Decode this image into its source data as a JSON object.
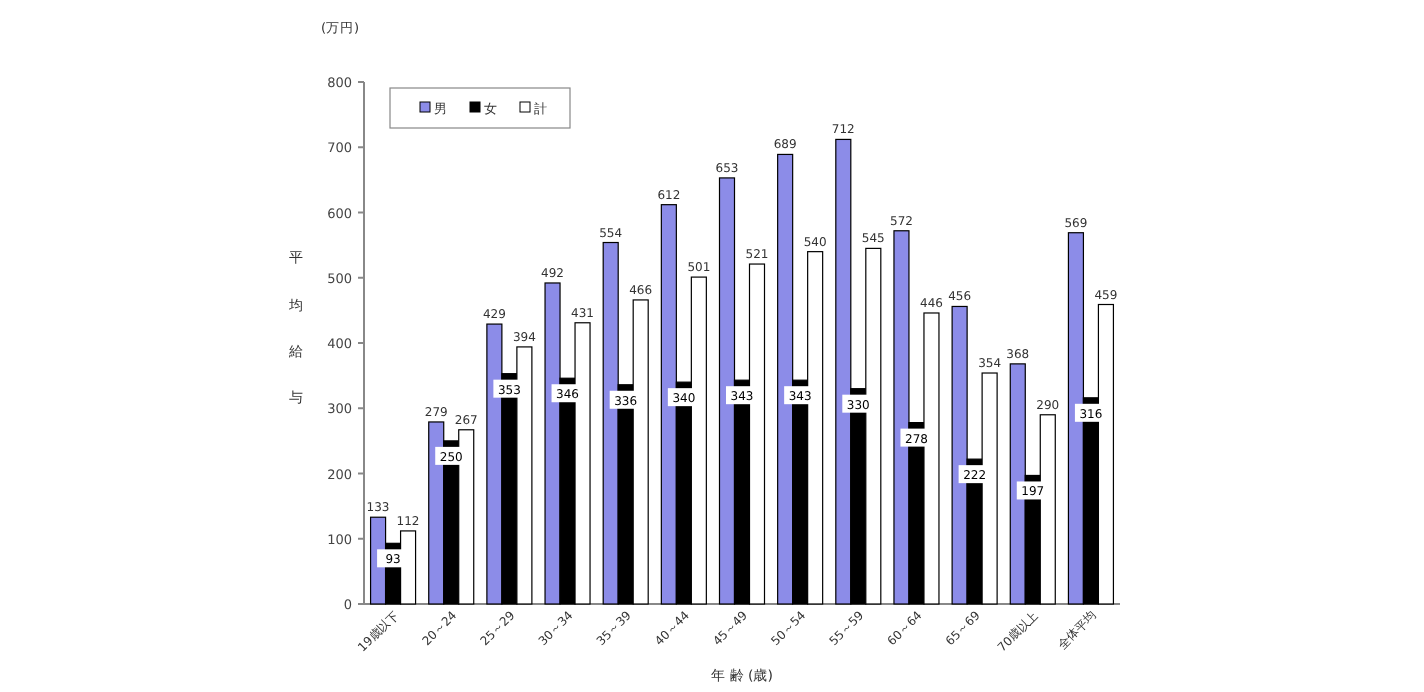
{
  "chart_data": {
    "type": "bar",
    "title": "(万円)",
    "xlabel": "年 齢 (歳)",
    "ylabel": "平均給与",
    "categories": [
      "19歳以下",
      "20～24",
      "25～29",
      "30～34",
      "35～39",
      "40～44",
      "45～49",
      "50～54",
      "55～59",
      "60～64",
      "65～69",
      "70歳以上",
      "全体平均"
    ],
    "series": [
      {
        "name": "男",
        "color": "#8c8ce8",
        "values": [
          133,
          279,
          429,
          492,
          554,
          612,
          653,
          689,
          712,
          572,
          456,
          368,
          569
        ]
      },
      {
        "name": "女",
        "color": "#000000",
        "values": [
          93,
          250,
          353,
          346,
          336,
          340,
          343,
          343,
          330,
          278,
          222,
          197,
          316
        ]
      },
      {
        "name": "計",
        "color": "#ffffff",
        "values": [
          112,
          267,
          394,
          431,
          466,
          501,
          521,
          540,
          545,
          446,
          354,
          290,
          459
        ]
      }
    ],
    "ylim": [
      0,
      800
    ],
    "yticks": [
      0,
      100,
      200,
      300,
      400,
      500,
      600,
      700,
      800
    ],
    "data_labels": true,
    "legend": "top left",
    "grid": false
  }
}
